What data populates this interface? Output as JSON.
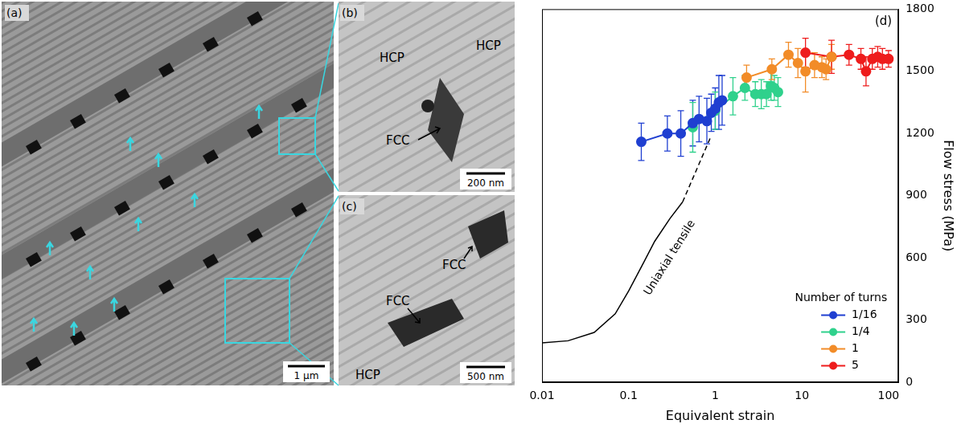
{
  "micrographs": [
    {
      "label": "(a)",
      "scale_bar": "1 µm"
    },
    {
      "label": "(b)",
      "phases": [
        "HCP",
        "HCP",
        "FCC"
      ],
      "scale_bar": "200 nm"
    },
    {
      "label": "(c)",
      "phases": [
        "FCC",
        "FCC",
        "HCP"
      ],
      "scale_bar": "500 nm"
    }
  ],
  "chart_data": {
    "type": "scatter",
    "panel_label": "(d)",
    "x_label": "Equivalent strain",
    "y_label": "Flow stress (MPa)",
    "log": "x",
    "grid": false,
    "xlim": [
      0.01,
      130
    ],
    "xticks": [
      0.01,
      0.1,
      1,
      10,
      100
    ],
    "ylim": [
      0,
      1800
    ],
    "yticks": [
      0,
      300,
      600,
      900,
      1200,
      1500,
      1800
    ],
    "legend": "lower right",
    "legend_title": "Number of turns",
    "series": [
      {
        "name": "1/16",
        "color": "#1f3fd1",
        "marker": "circle",
        "line_style": "solid",
        "x": [
          0.14,
          0.28,
          0.4,
          0.55,
          0.65,
          0.8,
          0.9,
          1.0,
          1.1,
          1.2
        ],
        "values": [
          1160,
          1200,
          1200,
          1250,
          1270,
          1260,
          1300,
          1320,
          1350,
          1360
        ],
        "errors": [
          90,
          85,
          110,
          110,
          110,
          110,
          90,
          100,
          130,
          120
        ]
      },
      {
        "name": "1/4",
        "color": "#2fd18c",
        "marker": "circle",
        "line_style": "solid",
        "x": [
          0.55,
          1.0,
          1.6,
          2.2,
          2.9,
          3.4,
          3.9,
          4.4,
          4.8,
          5.3
        ],
        "values": [
          1230,
          1310,
          1380,
          1420,
          1390,
          1390,
          1390,
          1430,
          1420,
          1400
        ],
        "errors": [
          120,
          90,
          90,
          60,
          60,
          70,
          60,
          70,
          60,
          70
        ]
      },
      {
        "name": "1",
        "color": "#f28c28",
        "marker": "circle",
        "line_style": "solid",
        "x": [
          2.3,
          4.5,
          7,
          9,
          11,
          14,
          17,
          19,
          22
        ],
        "values": [
          1470,
          1510,
          1580,
          1540,
          1500,
          1530,
          1520,
          1510,
          1570
        ],
        "errors": [
          60,
          50,
          60,
          70,
          100,
          60,
          50,
          50,
          60
        ]
      },
      {
        "name": "5",
        "color": "#ee1c1c",
        "marker": "circle",
        "line_style": "solid",
        "x": [
          11,
          22,
          35,
          48,
          55,
          65,
          75,
          85,
          100
        ],
        "values": [
          1590,
          1570,
          1580,
          1560,
          1500,
          1560,
          1570,
          1560,
          1560
        ],
        "errors": [
          70,
          80,
          50,
          50,
          70,
          50,
          50,
          50,
          40
        ]
      }
    ],
    "curves": [
      {
        "label": "Uniaxial tensile",
        "color": "#000000",
        "segments": [
          {
            "line_style": "solid",
            "x": [
              0.01,
              0.02,
              0.04,
              0.07,
              0.1,
              0.15,
              0.2,
              0.3,
              0.42
            ],
            "values": [
              190,
              200,
              240,
              330,
              440,
              580,
              680,
              790,
              870
            ]
          },
          {
            "line_style": "dashed",
            "x": [
              0.42,
              0.9
            ],
            "values": [
              870,
              1190
            ]
          }
        ]
      }
    ]
  }
}
